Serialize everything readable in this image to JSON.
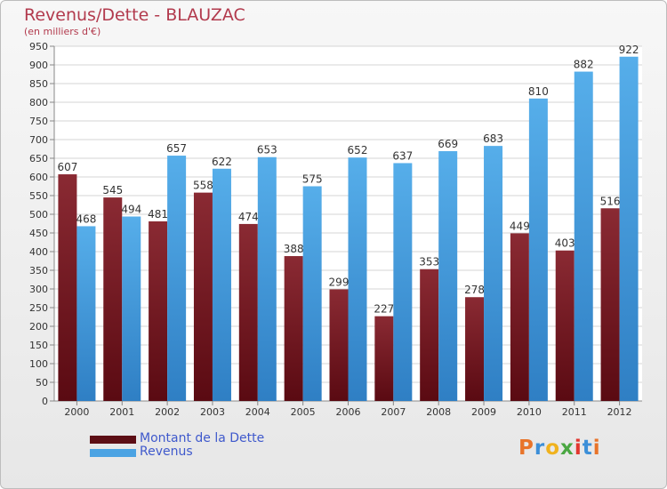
{
  "chart_data": {
    "type": "bar",
    "title": "Revenus/Dette - BLAUZAC",
    "subtitle": "(en milliers d'€)",
    "categories": [
      "2000",
      "2001",
      "2002",
      "2003",
      "2004",
      "2005",
      "2006",
      "2007",
      "2008",
      "2009",
      "2010",
      "2011",
      "2012"
    ],
    "series": [
      {
        "name": "Montant de la Dette",
        "color": "#7a1a22",
        "values": [
          607,
          545,
          481,
          558,
          474,
          388,
          299,
          227,
          353,
          278,
          449,
          403,
          516
        ]
      },
      {
        "name": "Revenus",
        "color": "#4ba3e3",
        "values": [
          468,
          494,
          657,
          622,
          653,
          575,
          652,
          637,
          669,
          683,
          810,
          882,
          922
        ]
      }
    ],
    "ylim": [
      0,
      950
    ],
    "ytick_step": 50,
    "grid": true,
    "legend_position": "bottom-left",
    "xlabel": "",
    "ylabel": ""
  },
  "branding": {
    "logo_text": "Proxiti",
    "logo_letters": [
      "P",
      "r",
      "o",
      "x",
      "i",
      "t",
      "i"
    ],
    "logo_colors": [
      "#e8742a",
      "#3c8fd8",
      "#f0b21d",
      "#4aa742",
      "#e2372f",
      "#3c8fd8",
      "#e8742a"
    ]
  }
}
